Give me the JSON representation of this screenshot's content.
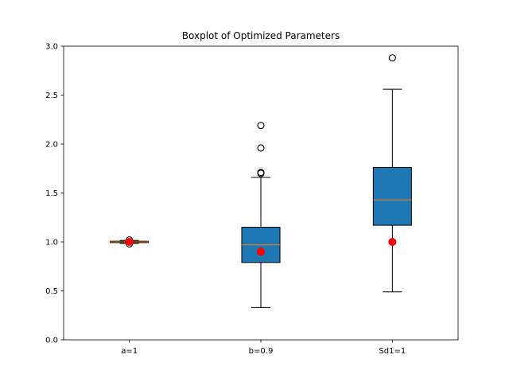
{
  "chart_data": {
    "type": "box",
    "title": "Boxplot of Optimized Parameters",
    "xlabel": "",
    "ylabel": "",
    "ylim": [
      0.0,
      3.0
    ],
    "yticks": [
      0.0,
      0.5,
      1.0,
      1.5,
      2.0,
      2.5,
      3.0
    ],
    "ytick_labels": [
      "0.0",
      "0.5",
      "1.0",
      "1.5",
      "2.0",
      "2.5",
      "3.0"
    ],
    "grid": false,
    "categories": [
      "a=1",
      "b=0.9",
      "Sd1=1"
    ],
    "boxes": [
      {
        "label": "a=1",
        "whisker_low": 0.985,
        "q1": 0.993,
        "median": 1.0,
        "q3": 1.007,
        "whisker_high": 1.015,
        "outliers": [
          0.98,
          1.02
        ],
        "true_value": 1.0
      },
      {
        "label": "b=0.9",
        "whisker_low": 0.33,
        "q1": 0.79,
        "median": 0.97,
        "q3": 1.15,
        "whisker_high": 1.66,
        "outliers": [
          1.7,
          1.71,
          1.96,
          2.19
        ],
        "true_value": 0.9
      },
      {
        "label": "Sd1=1",
        "whisker_low": 0.49,
        "q1": 1.17,
        "median": 1.43,
        "q3": 1.76,
        "whisker_high": 2.56,
        "outliers": [
          2.88
        ],
        "true_value": 1.0
      }
    ],
    "colors": {
      "box_fill": "#1f77b4",
      "median": "#ff7f0e",
      "true_value_marker": "#ff0000",
      "outlier_edge": "#000000"
    }
  }
}
